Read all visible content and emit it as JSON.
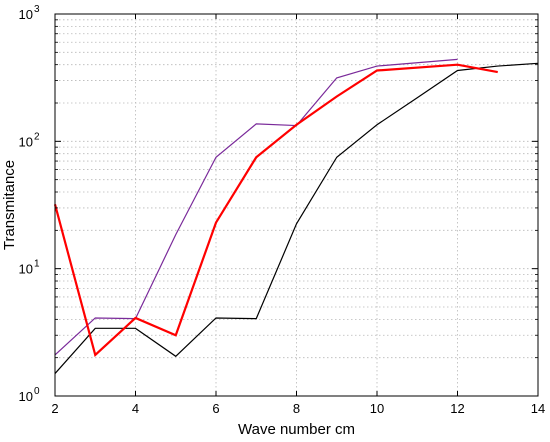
{
  "chart_data": {
    "type": "line",
    "title": "",
    "xlabel": "Wave number cm",
    "ylabel": "Transmitance",
    "xlim": [
      2,
      14
    ],
    "ylim": [
      1,
      1000
    ],
    "y_scale": "log",
    "grid": true,
    "x_ticks": [
      2,
      4,
      6,
      8,
      10,
      12,
      14
    ],
    "y_ticks": [
      {
        "value": 1,
        "base": "10",
        "exp": "0"
      },
      {
        "value": 10,
        "base": "10",
        "exp": "1"
      },
      {
        "value": 100,
        "base": "10",
        "exp": "2"
      },
      {
        "value": 1000,
        "base": "10",
        "exp": "3"
      }
    ],
    "series": [
      {
        "color": "#000000",
        "line_width": 1.2,
        "points": [
          [
            2,
            1.5
          ],
          [
            3,
            3.4
          ],
          [
            4,
            3.4
          ],
          [
            5,
            2.05
          ],
          [
            6,
            4.1
          ],
          [
            7,
            4.05
          ],
          [
            8,
            22.5
          ],
          [
            9,
            75
          ],
          [
            10,
            135
          ],
          [
            11,
            220
          ],
          [
            12,
            360
          ],
          [
            13,
            390
          ],
          [
            14,
            410
          ]
        ]
      },
      {
        "color": "#7a2a9a",
        "line_width": 1.2,
        "points": [
          [
            2,
            2.1
          ],
          [
            3,
            4.1
          ],
          [
            4,
            4.05
          ],
          [
            5,
            18.5
          ],
          [
            6,
            75
          ],
          [
            7,
            137
          ],
          [
            8,
            133
          ],
          [
            9,
            315
          ],
          [
            10,
            390
          ],
          [
            12,
            440
          ]
        ]
      },
      {
        "color": "#ff0000",
        "line_width": 2.2,
        "points": [
          [
            2,
            32
          ],
          [
            3,
            2.1
          ],
          [
            4,
            4.1
          ],
          [
            5,
            3.0
          ],
          [
            6,
            23
          ],
          [
            7,
            75
          ],
          [
            8,
            135
          ],
          [
            9,
            225
          ],
          [
            10,
            360
          ],
          [
            12,
            400
          ],
          [
            13,
            350
          ]
        ]
      }
    ]
  }
}
